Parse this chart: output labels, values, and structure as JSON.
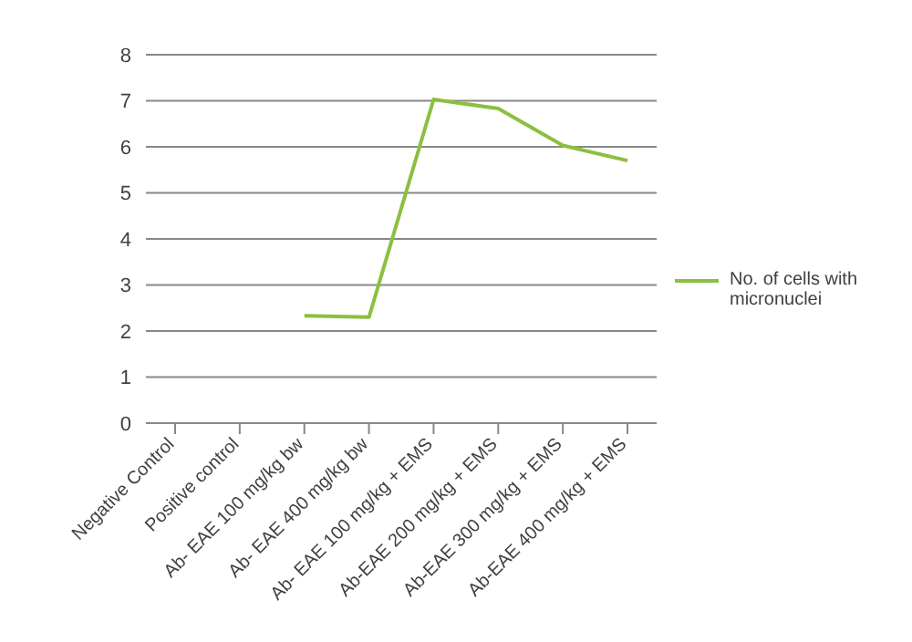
{
  "chart_data": {
    "type": "line",
    "categories": [
      "Negative Control",
      "Positive control",
      "Ab- EAE 100 mg/kg bw",
      "Ab- EAE 400 mg/kg bw",
      "Ab- EAE 100 mg/kg + EMS",
      "Ab-EAE 200 mg/kg + EMS",
      "Ab-EAE 300 mg/kg + EMS",
      "Ab-EAE 400 mg/kg + EMS"
    ],
    "series": [
      {
        "name": "No. of cells with micronuclei",
        "color": "#8cbf3f",
        "values": [
          null,
          null,
          2.33,
          2.3,
          7.03,
          6.83,
          6.03,
          5.7
        ]
      }
    ],
    "ylim": [
      0,
      8
    ],
    "yticks": [
      0,
      1,
      2,
      3,
      4,
      5,
      6,
      7,
      8
    ],
    "grid": "y",
    "legend": "right",
    "marker": "none"
  }
}
